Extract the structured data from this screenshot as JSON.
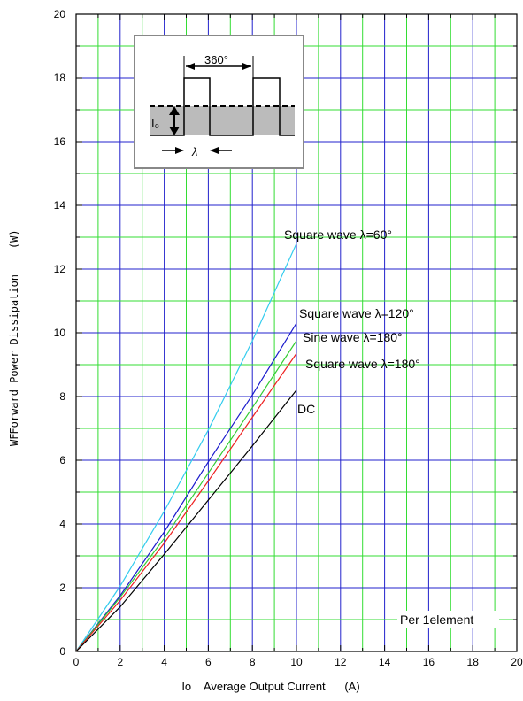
{
  "chart_data": {
    "type": "line",
    "xlabel": "Io    Average Output Current      (A)",
    "ylabel_left": "WF",
    "ylabel": "Forward Power Dissipation    (W)",
    "xlim": [
      0,
      20
    ],
    "ylim": [
      0,
      20
    ],
    "x_ticks": [
      "0",
      "2",
      "4",
      "6",
      "8",
      "10",
      "12",
      "14",
      "16",
      "18",
      "20"
    ],
    "y_ticks": [
      "0",
      "2",
      "4",
      "6",
      "8",
      "10",
      "12",
      "14",
      "16",
      "18",
      "20"
    ],
    "grid": true,
    "series": [
      {
        "name": "Square wave λ=60°",
        "color": "#33ccee",
        "x": [
          0,
          2,
          4,
          6,
          8,
          10
        ],
        "y": [
          0,
          2.05,
          4.4,
          6.95,
          9.75,
          12.8
        ]
      },
      {
        "name": "Square wave λ=120°",
        "color": "#1a1acc",
        "x": [
          0,
          2,
          4,
          6,
          8,
          10
        ],
        "y": [
          0,
          1.75,
          3.75,
          5.95,
          8.05,
          10.3
        ]
      },
      {
        "name": "Sine wave λ=180°",
        "color": "#33cc33",
        "x": [
          0,
          2,
          4,
          6,
          8,
          10
        ],
        "y": [
          0,
          1.7,
          3.55,
          5.6,
          7.65,
          9.75
        ]
      },
      {
        "name": "Square wave λ=180°",
        "color": "#ee2222",
        "x": [
          0,
          2,
          4,
          6,
          8,
          10
        ],
        "y": [
          0,
          1.6,
          3.4,
          5.35,
          7.35,
          9.35
        ]
      },
      {
        "name": "DC",
        "color": "#000000",
        "x": [
          0,
          2,
          4,
          6,
          8,
          10
        ],
        "y": [
          0,
          1.4,
          3.05,
          4.75,
          6.45,
          8.2
        ]
      }
    ],
    "annotations": {
      "note": "Per 1element",
      "inset_angle": "360°",
      "inset_current": "I₀",
      "inset_lambda": "λ"
    }
  },
  "colors": {
    "grid_minor": "#33dd33",
    "grid_major": "#2222cc"
  }
}
